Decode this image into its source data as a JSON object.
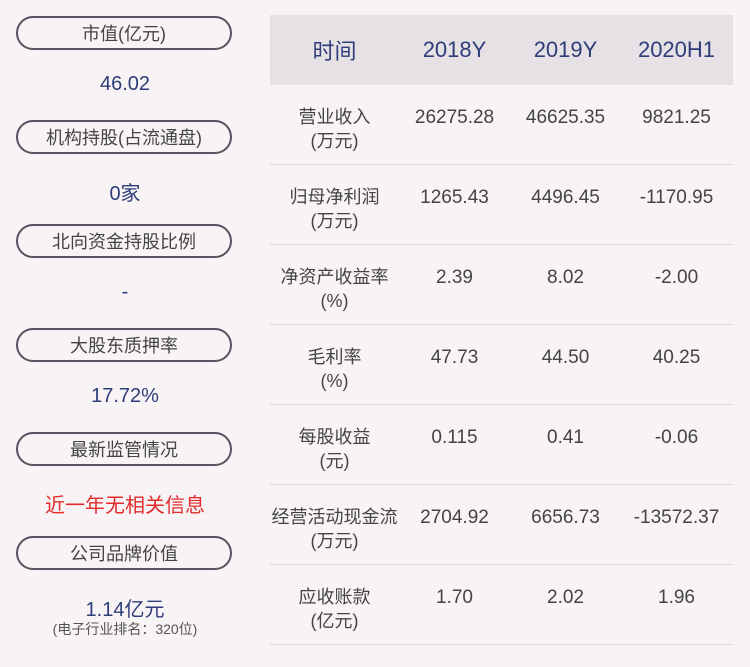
{
  "left": {
    "market_cap": {
      "label": "市值(亿元)",
      "value": "46.02"
    },
    "institutional": {
      "label": "机构持股(占流通盘)",
      "value": "0家"
    },
    "northbound": {
      "label": "北向资金持股比例",
      "value": "-"
    },
    "pledge": {
      "label": "大股东质押率",
      "value": "17.72%"
    },
    "regulation": {
      "label": "最新监管情况",
      "value": "近一年无相关信息"
    },
    "brand": {
      "label": "公司品牌价值",
      "value": "1.14亿元",
      "note": "(电子行业排名：320位)"
    }
  },
  "table": {
    "headers": [
      "时间",
      "2018Y",
      "2019Y",
      "2020H1"
    ],
    "rows": [
      {
        "label1": "营业收入",
        "label2": "(万元)",
        "values": [
          "26275.28",
          "46625.35",
          "9821.25"
        ]
      },
      {
        "label1": "归母净利润",
        "label2": "(万元)",
        "values": [
          "1265.43",
          "4496.45",
          "-1170.95"
        ]
      },
      {
        "label1": "净资产收益率",
        "label2": "(%)",
        "values": [
          "2.39",
          "8.02",
          "-2.00"
        ]
      },
      {
        "label1": "毛利率",
        "label2": "(%)",
        "values": [
          "47.73",
          "44.50",
          "40.25"
        ]
      },
      {
        "label1": "每股收益",
        "label2": "(元)",
        "values": [
          "0.115",
          "0.41",
          "-0.06"
        ]
      },
      {
        "label1": "经营活动现金流",
        "label2": "(万元)",
        "values": [
          "2704.92",
          "6656.73",
          "-13572.37"
        ]
      },
      {
        "label1": "应收账款",
        "label2": "(亿元)",
        "values": [
          "1.70",
          "2.02",
          "1.96"
        ]
      }
    ]
  },
  "colors": {
    "accent": "#2e3d7a",
    "alert": "#e12b2b",
    "background": "#f8f3f5",
    "header_bg": "#e6e1e5"
  }
}
